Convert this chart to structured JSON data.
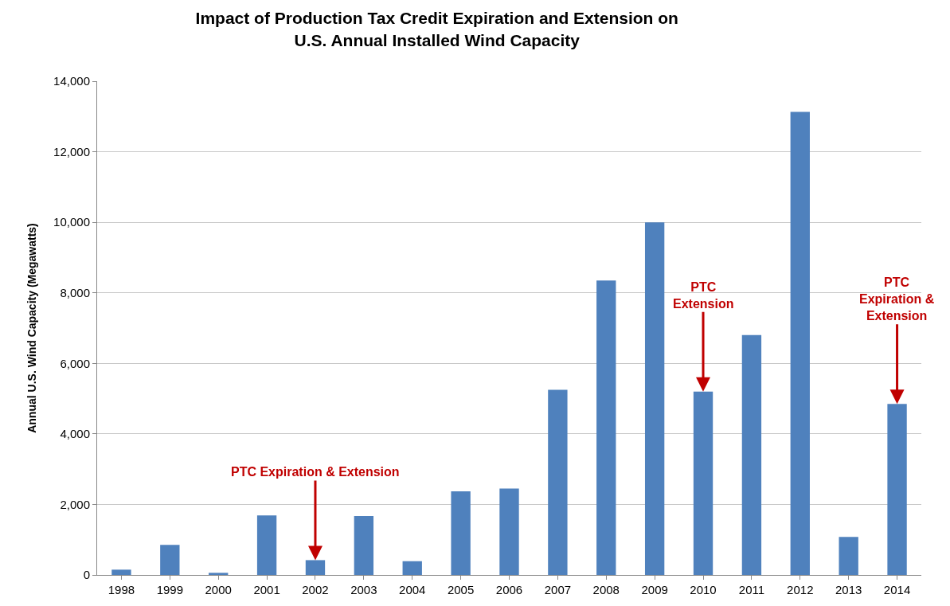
{
  "chart_data": {
    "type": "bar",
    "title": "Impact of Production Tax Credit Expiration and Extension on\nU.S. Annual Installed Wind Capacity",
    "ylabel": "Annual U.S. Wind Capacity (Megawatts)",
    "categories": [
      "1998",
      "1999",
      "2000",
      "2001",
      "2002",
      "2003",
      "2004",
      "2005",
      "2006",
      "2007",
      "2008",
      "2009",
      "2010",
      "2011",
      "2012",
      "2013",
      "2014"
    ],
    "values": [
      150,
      850,
      60,
      1690,
      420,
      1670,
      390,
      2370,
      2450,
      5250,
      8350,
      10000,
      5200,
      6800,
      13130,
      1080,
      4850
    ],
    "color": "#4f81bd",
    "ylim": [
      0,
      14000
    ],
    "yticks": [
      {
        "value": 0,
        "label": "0"
      },
      {
        "value": 2000,
        "label": "2,000"
      },
      {
        "value": 4000,
        "label": "4,000"
      },
      {
        "value": 6000,
        "label": "6,000"
      },
      {
        "value": 8000,
        "label": "8,000"
      },
      {
        "value": 10000,
        "label": "10,000"
      },
      {
        "value": 12000,
        "label": "12,000"
      },
      {
        "value": 14000,
        "label": "14,000"
      }
    ],
    "grid": "y",
    "annotations": [
      {
        "text": "PTC Expiration & Extension",
        "x": "2002",
        "y": 420
      },
      {
        "text": "PTC\nExtension",
        "x": "2010",
        "y": 5200
      },
      {
        "text": "PTC\nExpiration &\nExtension",
        "x": "2014",
        "y": 4850
      }
    ]
  }
}
